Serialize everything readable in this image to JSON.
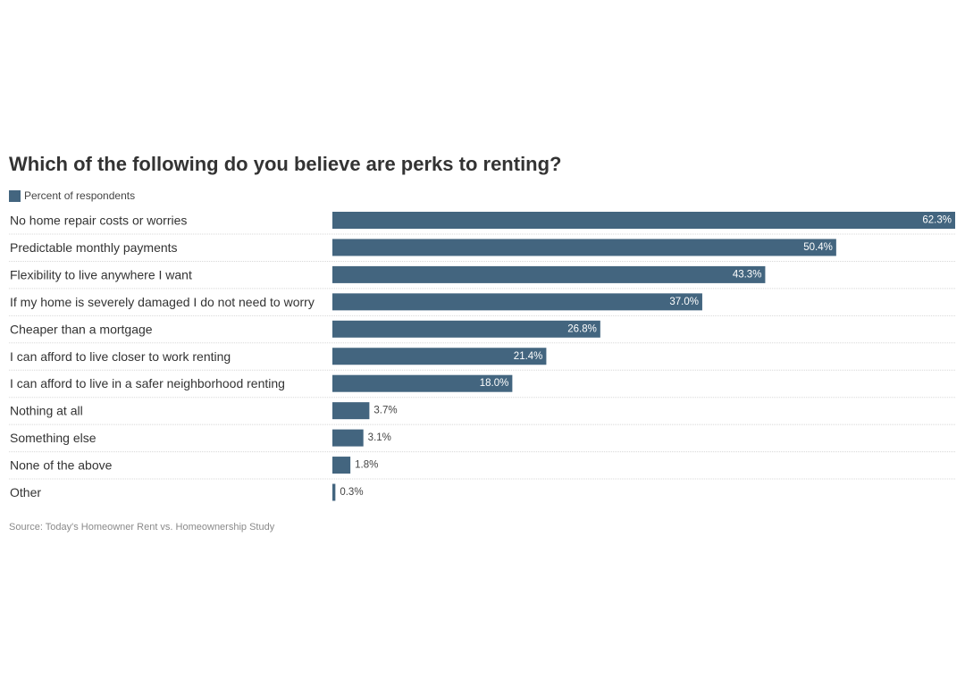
{
  "chart_data": {
    "type": "bar",
    "orientation": "horizontal",
    "title": "Which of the following do you believe are perks to renting?",
    "categories": [
      "No home repair costs or worries",
      "Predictable monthly payments",
      "Flexibility to live anywhere I want",
      "If my home is severely damaged I do not need to worry",
      "Cheaper than a mortgage",
      "I can afford to live closer to work renting",
      "I can afford to live in a safer neighborhood renting",
      "Nothing at all",
      "Something else",
      "None of the above",
      "Other"
    ],
    "series": [
      {
        "name": "Percent of respondents",
        "values": [
          62.3,
          50.4,
          43.3,
          37.0,
          26.8,
          21.4,
          18.0,
          3.7,
          3.1,
          1.8,
          0.3
        ],
        "labels": [
          "62.3%",
          "50.4%",
          "43.3%",
          "37.0%",
          "26.8%",
          "21.4%",
          "18.0%",
          "3.7%",
          "3.1%",
          "1.8%",
          "0.3%"
        ]
      }
    ],
    "xlim": [
      0,
      62.3
    ],
    "legend_position": "top-left",
    "grid": false,
    "colors": {
      "bar": "#43657f",
      "label_inside": "#ffffff",
      "label_outside": "#444444"
    },
    "source": "Source: Today's Homeowner Rent vs. Homeownership Study"
  }
}
